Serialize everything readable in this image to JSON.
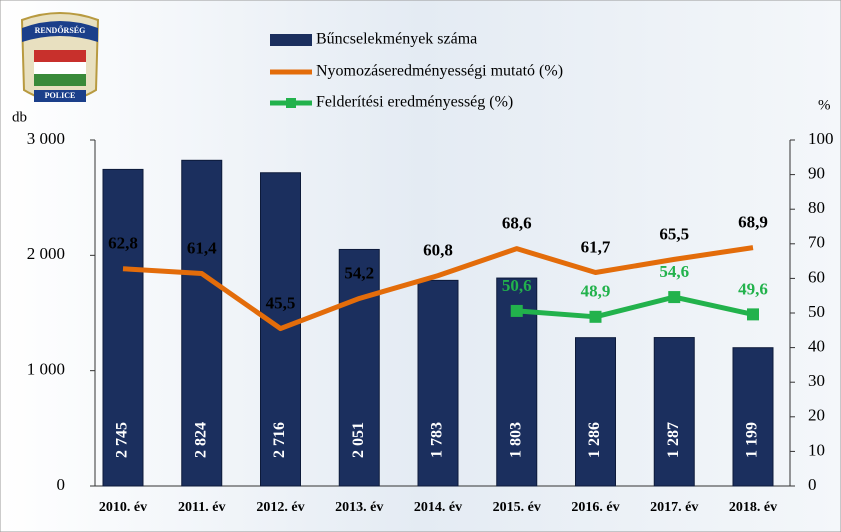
{
  "chart_data": {
    "type": "bar_line",
    "logo": {
      "top": "RENDŐRSÉG",
      "bottom": "POLICE"
    },
    "y_label": "db",
    "y2_label": "%",
    "categories": [
      "2010. év",
      "2011. év",
      "2012. év",
      "2013. év",
      "2014. év",
      "2015. év",
      "2016. év",
      "2017. év",
      "2018. év"
    ],
    "series": [
      {
        "name": "Bűncselekmények száma",
        "type": "bar",
        "color": "#1b2f5e",
        "values": [
          2745,
          2824,
          2716,
          2051,
          1783,
          1803,
          1286,
          1287,
          1199
        ],
        "value_labels": [
          "2 745",
          "2 824",
          "2 716",
          "2 051",
          "1 783",
          "1 803",
          "1 286",
          "1 287",
          "1 199"
        ]
      },
      {
        "name": "Nyomozáseredményességi mutató (%)",
        "type": "line",
        "axis": "y2",
        "color": "#e36c0a",
        "values": [
          62.8,
          61.4,
          45.5,
          54.2,
          60.8,
          68.6,
          61.7,
          65.5,
          68.9
        ],
        "value_labels": [
          "62,8",
          "61,4",
          "45,5",
          "54,2",
          "60,8",
          "68,6",
          "61,7",
          "65,5",
          "68,9"
        ]
      },
      {
        "name": "Felderítési eredményesség (%)",
        "type": "line",
        "axis": "y2",
        "color": "#22b24c",
        "marker": "square",
        "values": [
          null,
          null,
          null,
          null,
          null,
          50.6,
          48.9,
          54.6,
          49.6
        ],
        "value_labels": [
          null,
          null,
          null,
          null,
          null,
          "50,6",
          "48,9",
          "54,6",
          "49,6"
        ]
      }
    ],
    "ylim": [
      0,
      3000
    ],
    "yticks": [
      0,
      {
        "value": 1000,
        "label": "1 000"
      },
      {
        "value": 2000,
        "label": "2 000"
      },
      {
        "value": 3000,
        "label": "3 000"
      }
    ],
    "y2lim": [
      0,
      100
    ],
    "y2ticks": [
      0,
      10,
      20,
      30,
      40,
      50,
      60,
      70,
      80,
      90,
      100
    ]
  }
}
